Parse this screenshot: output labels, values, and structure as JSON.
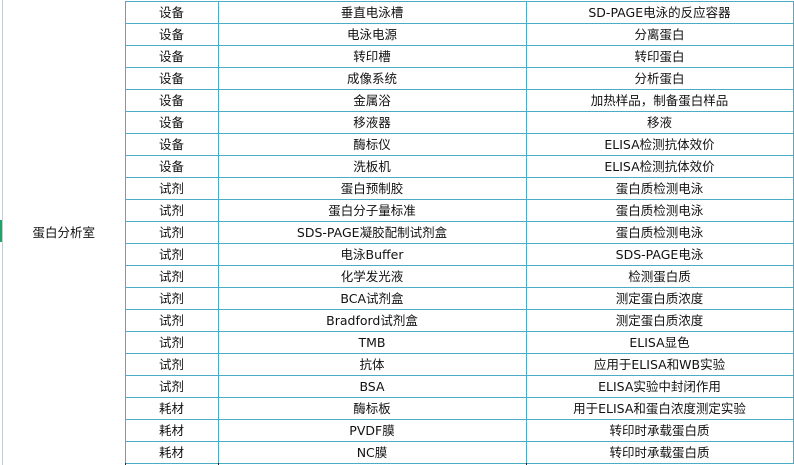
{
  "room": "蛋白分析室",
  "colors": {
    "border": "#4bacc6",
    "selection_marker": "#21a366"
  },
  "rows": [
    {
      "type": "设备",
      "name": "垂直电泳槽",
      "purpose": "SD-PAGE电泳的反应容器"
    },
    {
      "type": "设备",
      "name": "电泳电源",
      "purpose": "分离蛋白"
    },
    {
      "type": "设备",
      "name": "转印槽",
      "purpose": "转印蛋白"
    },
    {
      "type": "设备",
      "name": "成像系统",
      "purpose": "分析蛋白"
    },
    {
      "type": "设备",
      "name": "金属浴",
      "purpose": "加热样品，制备蛋白样品"
    },
    {
      "type": "设备",
      "name": "移液器",
      "purpose": "移液"
    },
    {
      "type": "设备",
      "name": "酶标仪",
      "purpose": "ELISA检测抗体效价"
    },
    {
      "type": "设备",
      "name": "洗板机",
      "purpose": "ELISA检测抗体效价"
    },
    {
      "type": "试剂",
      "name": "蛋白预制胶",
      "purpose": "蛋白质检测电泳"
    },
    {
      "type": "试剂",
      "name": "蛋白分子量标准",
      "purpose": "蛋白质检测电泳"
    },
    {
      "type": "试剂",
      "name": "SDS-PAGE凝胶配制试剂盒",
      "purpose": "蛋白质检测电泳"
    },
    {
      "type": "试剂",
      "name": "电泳Buffer",
      "purpose": "SDS-PAGE电泳"
    },
    {
      "type": "试剂",
      "name": "化学发光液",
      "purpose": "检测蛋白质"
    },
    {
      "type": "试剂",
      "name": "BCA试剂盒",
      "purpose": "测定蛋白质浓度"
    },
    {
      "type": "试剂",
      "name": "Bradford试剂盒",
      "purpose": "测定蛋白质浓度"
    },
    {
      "type": "试剂",
      "name": "TMB",
      "purpose": "ELISA显色"
    },
    {
      "type": "试剂",
      "name": "抗体",
      "purpose": "应用于ELISA和WB实验"
    },
    {
      "type": "试剂",
      "name": "BSA",
      "purpose": "ELISA实验中封闭作用"
    },
    {
      "type": "耗材",
      "name": "酶标板",
      "purpose": "用于ELISA和蛋白浓度测定实验"
    },
    {
      "type": "耗材",
      "name": "PVDF膜",
      "purpose": "转印时承载蛋白质"
    },
    {
      "type": "耗材",
      "name": "NC膜",
      "purpose": "转印时承载蛋白质"
    }
  ]
}
